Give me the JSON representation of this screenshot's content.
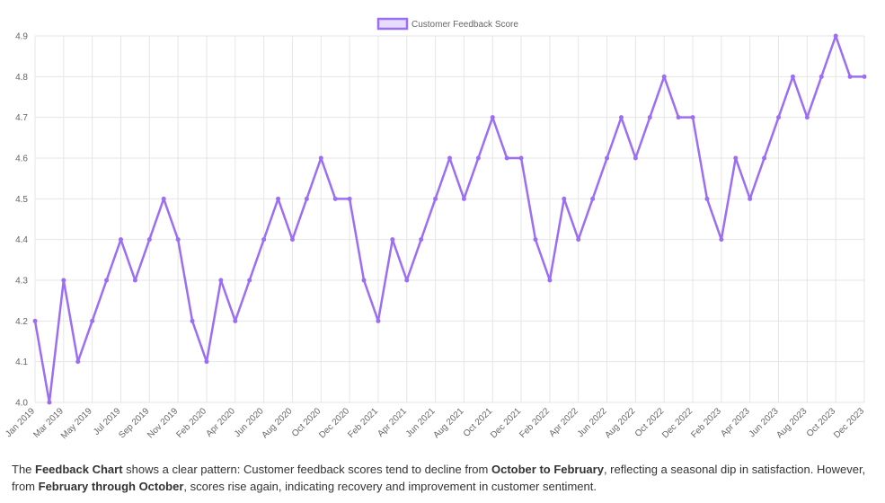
{
  "chart_data": {
    "type": "line",
    "legend": "top",
    "grid": true,
    "series": [
      {
        "name": "Customer Feedback Score",
        "color": "#9b6ef3",
        "values": [
          4.2,
          4.0,
          4.3,
          4.1,
          4.2,
          4.3,
          4.4,
          4.3,
          4.4,
          4.5,
          4.4,
          4.2,
          4.1,
          4.3,
          4.2,
          4.3,
          4.4,
          4.5,
          4.4,
          4.5,
          4.6,
          4.5,
          4.5,
          4.3,
          4.2,
          4.4,
          4.3,
          4.4,
          4.5,
          4.6,
          4.5,
          4.6,
          4.7,
          4.6,
          4.6,
          4.4,
          4.3,
          4.5,
          4.4,
          4.5,
          4.6,
          4.7,
          4.6,
          4.7,
          4.8,
          4.7,
          4.7,
          4.5,
          4.4,
          4.6,
          4.5,
          4.6,
          4.7,
          4.8,
          4.7,
          4.8,
          4.9,
          4.8,
          4.8
        ]
      }
    ],
    "categories": [
      "Jan 2019",
      null,
      "Mar 2019",
      null,
      "May 2019",
      null,
      "Jul 2019",
      null,
      "Sep 2019",
      null,
      "Nov 2019",
      null,
      "Feb 2020",
      null,
      "Apr 2020",
      null,
      "Jun 2020",
      null,
      "Aug 2020",
      null,
      "Oct 2020",
      null,
      "Dec 2020",
      null,
      "Feb 2021",
      null,
      "Apr 2021",
      null,
      "Jun 2021",
      null,
      "Aug 2021",
      null,
      "Oct 2021",
      null,
      "Dec 2021",
      null,
      "Feb 2022",
      null,
      "Apr 2022",
      null,
      "Jun 2022",
      null,
      "Aug 2022",
      null,
      "Oct 2022",
      null,
      "Dec 2022",
      null,
      "Feb 2023",
      null,
      "Apr 2023",
      null,
      "Jun 2023",
      null,
      "Aug 2023",
      null,
      "Oct 2023",
      null,
      "Dec 2023"
    ],
    "ylim": [
      4.0,
      4.9
    ],
    "yticks": [
      {
        "value": 4,
        "label": "4.0"
      },
      4.1,
      4.2,
      4.3,
      4.4,
      4.5,
      4.6,
      4.7,
      4.8,
      4.9
    ]
  },
  "description": [
    {
      "text": "The ",
      "bold": false
    },
    {
      "text": "Feedback Chart",
      "bold": true
    },
    {
      "text": " shows a clear pattern: Customer feedback scores tend to decline from ",
      "bold": false
    },
    {
      "text": "October to February",
      "bold": true
    },
    {
      "text": ", reflecting a seasonal dip in satisfaction. However, from ",
      "bold": false
    },
    {
      "text": "February through October",
      "bold": true
    },
    {
      "text": ", scores rise again, indicating recovery and improvement in customer sentiment.",
      "bold": false
    }
  ]
}
